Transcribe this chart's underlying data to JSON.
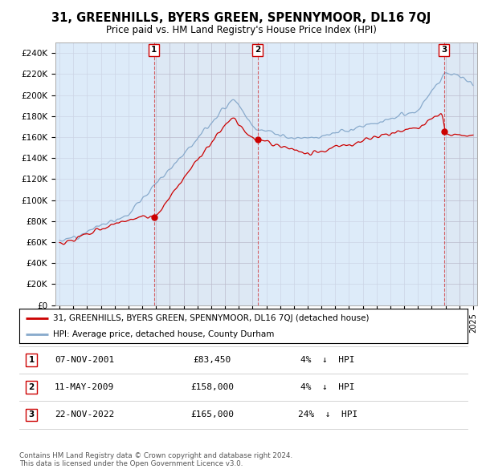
{
  "title": "31, GREENHILLS, BYERS GREEN, SPENNYMOOR, DL16 7QJ",
  "subtitle": "Price paid vs. HM Land Registry's House Price Index (HPI)",
  "ylim": [
    0,
    250000
  ],
  "yticks": [
    0,
    20000,
    40000,
    60000,
    80000,
    100000,
    120000,
    140000,
    160000,
    180000,
    200000,
    220000,
    240000
  ],
  "ytick_labels": [
    "£0",
    "£20K",
    "£40K",
    "£60K",
    "£80K",
    "£100K",
    "£120K",
    "£140K",
    "£160K",
    "£180K",
    "£200K",
    "£220K",
    "£240K"
  ],
  "xlim_start": 1994.7,
  "xlim_end": 2025.3,
  "xticks": [
    1995,
    1996,
    1997,
    1998,
    1999,
    2000,
    2001,
    2002,
    2003,
    2004,
    2005,
    2006,
    2007,
    2008,
    2009,
    2010,
    2011,
    2012,
    2013,
    2014,
    2015,
    2016,
    2017,
    2018,
    2019,
    2020,
    2021,
    2022,
    2023,
    2024,
    2025
  ],
  "sale_events": [
    {
      "label": "1",
      "year": 2001.85,
      "price": 83450,
      "date": "07-NOV-2001",
      "pct": "4%",
      "dir": "↓"
    },
    {
      "label": "2",
      "year": 2009.36,
      "price": 158000,
      "date": "11-MAY-2009",
      "pct": "4%",
      "dir": "↓"
    },
    {
      "label": "3",
      "year": 2022.89,
      "price": 165000,
      "date": "22-NOV-2022",
      "pct": "24%",
      "dir": "↓"
    }
  ],
  "legend_line1": "31, GREENHILLS, BYERS GREEN, SPENNYMOOR, DL16 7QJ (detached house)",
  "legend_line2": "HPI: Average price, detached house, County Durham",
  "footnote": "Contains HM Land Registry data © Crown copyright and database right 2024.\nThis data is licensed under the Open Government Licence v3.0.",
  "red_color": "#cc0000",
  "blue_color": "#88aacc",
  "shade_color": "#ddeeff",
  "bg_color": "#dde8f4",
  "plot_bg": "#ffffff",
  "grid_color": "#bbbbcc"
}
